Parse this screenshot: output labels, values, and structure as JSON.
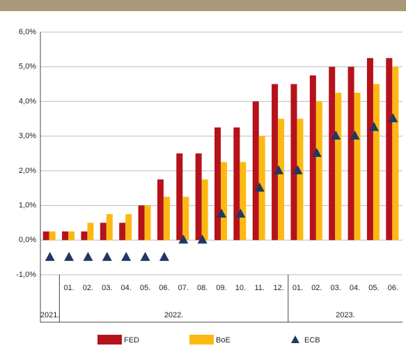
{
  "chart_data": {
    "type": "bar",
    "categories": [
      null,
      "01.",
      "02.",
      "03.",
      "04.",
      "05.",
      "06.",
      "07.",
      "08.",
      "09.",
      "10.",
      "11.",
      "12.",
      "01.",
      "02.",
      "03.",
      "04.",
      "05.",
      "06."
    ],
    "groups": [
      {
        "label": "2021.",
        "start": 0,
        "end": 0
      },
      {
        "label": "2022.",
        "start": 1,
        "end": 12
      },
      {
        "label": "2023.",
        "start": 13,
        "end": 18
      }
    ],
    "series": [
      {
        "name": "FED",
        "color": "#b5121b",
        "marker": "bar",
        "values": [
          0.25,
          0.25,
          0.25,
          0.5,
          0.5,
          1.0,
          1.75,
          2.5,
          2.5,
          3.25,
          3.25,
          4.0,
          4.5,
          4.5,
          4.75,
          5.0,
          5.0,
          5.25,
          5.25
        ]
      },
      {
        "name": "BoE",
        "color": "#fdb913",
        "marker": "bar",
        "values": [
          0.25,
          0.25,
          0.5,
          0.75,
          0.75,
          1.0,
          1.25,
          1.25,
          1.75,
          2.25,
          2.25,
          3.0,
          3.5,
          3.5,
          4.0,
          4.25,
          4.25,
          4.5,
          5.0
        ]
      },
      {
        "name": "ECB",
        "color": "#1f3864",
        "marker": "triangle",
        "values": [
          -0.5,
          -0.5,
          -0.5,
          -0.5,
          -0.5,
          -0.5,
          -0.5,
          0,
          0,
          0.75,
          0.75,
          1.5,
          2.0,
          2.0,
          2.5,
          3.0,
          3.0,
          3.25,
          3.5
        ]
      }
    ],
    "ylim": [
      -1,
      6
    ],
    "yticks": [
      {
        "value": -1,
        "label": "-1,0%"
      },
      {
        "value": 0,
        "label": "0,0%"
      },
      {
        "value": 1,
        "label": "1,0%"
      },
      {
        "value": 2,
        "label": "2,0%"
      },
      {
        "value": 3,
        "label": "3,0%"
      },
      {
        "value": 4,
        "label": "4,0%"
      },
      {
        "value": 5,
        "label": "5,0%"
      },
      {
        "value": 6,
        "label": "6,0%"
      }
    ],
    "grid": true
  }
}
